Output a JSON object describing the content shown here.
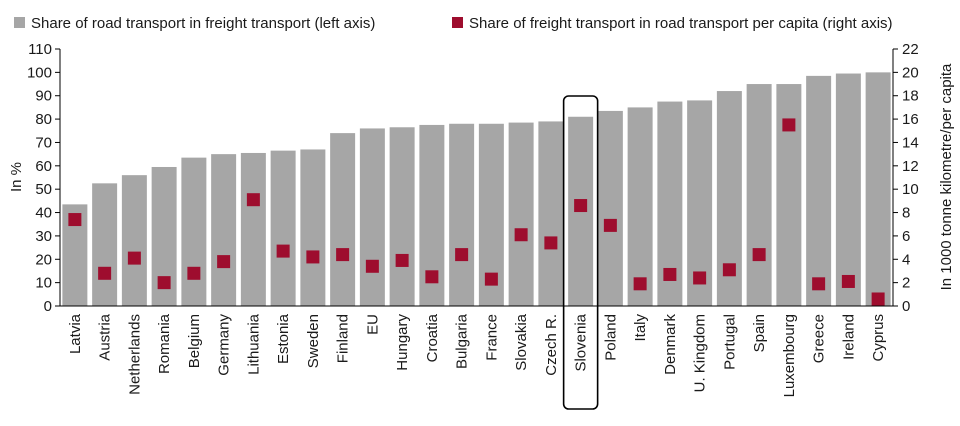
{
  "chart_data": {
    "type": "bar",
    "categories": [
      "Latvia",
      "Austria",
      "Netherlands",
      "Romania",
      "Belgium",
      "Germany",
      "Lithuania",
      "Estonia",
      "Sweden",
      "Finland",
      "EU",
      "Hungary",
      "Croatia",
      "Bulgaria",
      "France",
      "Slovakia",
      "Czech R.",
      "Slovenia",
      "Poland",
      "Italy",
      "Denmark",
      "U. Kingdom",
      "Portugal",
      "Spain",
      "Luxembourg",
      "Greece",
      "Ireland",
      "Cyprus"
    ],
    "series": [
      {
        "name": "Share of road transport in freight transport (left axis)",
        "axis": "left",
        "kind": "bar",
        "color": "#a6a6a6",
        "values": [
          43.5,
          52.5,
          56,
          59.5,
          63.5,
          65,
          65.5,
          66.5,
          67,
          74,
          76,
          76.5,
          77.5,
          78,
          78,
          78.5,
          79,
          81,
          83.5,
          85,
          87.5,
          88,
          92,
          95,
          95,
          98.5,
          99.5,
          100
        ]
      },
      {
        "name": "Share of freight transport in road transport per capita (right axis)",
        "axis": "right",
        "kind": "marker",
        "color": "#9e0d2e",
        "values": [
          7.4,
          2.8,
          4.1,
          2.0,
          2.8,
          3.8,
          9.1,
          4.7,
          4.2,
          4.4,
          3.4,
          3.9,
          2.5,
          4.4,
          2.3,
          6.1,
          5.4,
          8.6,
          6.9,
          1.9,
          2.7,
          2.4,
          3.1,
          4.4,
          15.5,
          1.9,
          2.1,
          0.6
        ]
      }
    ],
    "y_left": {
      "label": "In %",
      "min": 0,
      "max": 110,
      "step": 10
    },
    "y_right": {
      "label": "In 1000 tonne kilometre/per capita",
      "min": 0,
      "max": 22,
      "step": 2
    },
    "highlight_category": "Slovenia",
    "legend_position": "top",
    "grid": false
  }
}
